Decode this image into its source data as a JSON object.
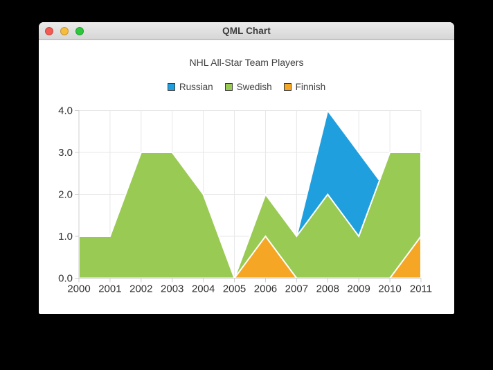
{
  "window": {
    "title": "QML Chart",
    "buttons": [
      {
        "name": "close",
        "color": "#f25a52"
      },
      {
        "name": "minimize",
        "color": "#f6bc3b"
      },
      {
        "name": "zoom",
        "color": "#2fc63f"
      }
    ]
  },
  "chart_data": {
    "type": "area",
    "title": "NHL All-Star Team Players",
    "x": [
      2000,
      2001,
      2002,
      2003,
      2004,
      2005,
      2006,
      2007,
      2008,
      2009,
      2010,
      2011
    ],
    "xticks": [
      "2000",
      "2001",
      "2002",
      "2003",
      "2004",
      "2005",
      "2006",
      "2007",
      "2008",
      "2009",
      "2010",
      "2011"
    ],
    "yticks": [
      "0.0",
      "1.0",
      "2.0",
      "3.0",
      "4.0"
    ],
    "ylim": [
      0,
      4
    ],
    "grid": true,
    "legend_position": "top",
    "baseline": 0,
    "area_border_color": "#ffffff",
    "grid_color": "#e7e7e7",
    "axis_color": "#cfcfcf",
    "series": [
      {
        "name": "Russian",
        "color": "#209fdf",
        "values": [
          1,
          1,
          1,
          1,
          1,
          0,
          1,
          1,
          4,
          3,
          2,
          1
        ]
      },
      {
        "name": "Swedish",
        "color": "#99ca53",
        "values": [
          1,
          1,
          3,
          3,
          2,
          0,
          2,
          1,
          2,
          1,
          3,
          3
        ]
      },
      {
        "name": "Finnish",
        "color": "#f6a625",
        "values": [
          0,
          0,
          0,
          0,
          0,
          0,
          1,
          0,
          0,
          0,
          0,
          1
        ]
      }
    ]
  }
}
